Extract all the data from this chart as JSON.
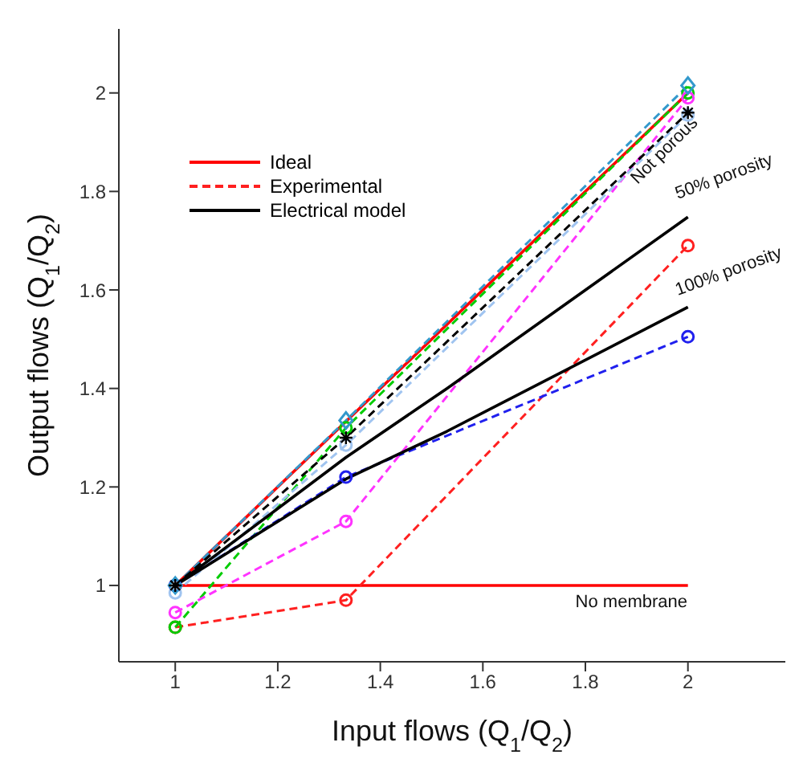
{
  "chart_data": {
    "type": "line",
    "xlabel": "Input flows (Q$_{1}$/Q$_{2}$)",
    "ylabel": "Output flows (Q$_{1}$/Q$_{2}$)",
    "xlim": [
      0.89,
      2.19
    ],
    "ylim": [
      0.845,
      2.13
    ],
    "xticks": [
      1,
      1.2,
      1.4,
      1.6,
      1.8,
      2
    ],
    "yticks": [
      1,
      1.2,
      1.4,
      1.6,
      1.8,
      2
    ],
    "grid": false,
    "legend": "top left",
    "series": [
      {
        "name": "Ideal",
        "color": "#ff0000",
        "x": [
          1,
          2
        ],
        "values": [
          1,
          2
        ],
        "marker": "none",
        "line_style": "solid"
      },
      {
        "color": "#ff0000",
        "x": [
          1,
          2
        ],
        "values": [
          1,
          1
        ],
        "marker": "none",
        "line_style": "solid"
      },
      {
        "name": "Experimental",
        "color": "#ff2020",
        "x": [
          1,
          1.333,
          2
        ],
        "values": [
          0.915,
          0.97,
          1.69
        ],
        "marker": "circle",
        "line_style": "dashed"
      },
      {
        "color": "#00cc00",
        "x": [
          1,
          1.333,
          2
        ],
        "values": [
          0.915,
          1.32,
          2.0
        ],
        "marker": "circle",
        "line_style": "dashed"
      },
      {
        "color": "#2020ee",
        "x": [
          1,
          1.333,
          2
        ],
        "values": [
          1,
          1.22,
          1.505
        ],
        "marker": "circle",
        "line_style": "dashed"
      },
      {
        "color": "#ff33ff",
        "x": [
          1,
          1.333,
          2
        ],
        "values": [
          0.945,
          1.13,
          1.99
        ],
        "marker": "circle",
        "line_style": "dashed"
      },
      {
        "color": "#3399cc",
        "x": [
          1,
          1.333,
          2
        ],
        "values": [
          1,
          1.335,
          2.015
        ],
        "marker": "diamond",
        "line_style": "dashed"
      },
      {
        "color": "#a0c4f0",
        "x": [
          1,
          1.333,
          2
        ],
        "values": [
          0.985,
          1.285,
          1.955
        ],
        "marker": "circle",
        "line_style": "dashed"
      },
      {
        "color": "#000000",
        "x": [
          1,
          1.333,
          2
        ],
        "values": [
          1,
          1.3,
          1.96
        ],
        "marker": "cross",
        "line_style": "dashed"
      },
      {
        "name": "Electrical model",
        "color": "#000000",
        "x": [
          1,
          1.333,
          1.53,
          2
        ],
        "values": [
          1,
          1.26,
          1.4,
          1.748
        ],
        "marker": "none",
        "line_style": "solid"
      },
      {
        "color": "#000000",
        "x": [
          1,
          1.333,
          1.53,
          2
        ],
        "values": [
          1,
          1.216,
          1.313,
          1.565
        ],
        "marker": "none",
        "line_style": "solid"
      }
    ],
    "annotations": [
      "Not porous",
      "50% porosity",
      "100% porosity",
      "No membrane"
    ]
  }
}
